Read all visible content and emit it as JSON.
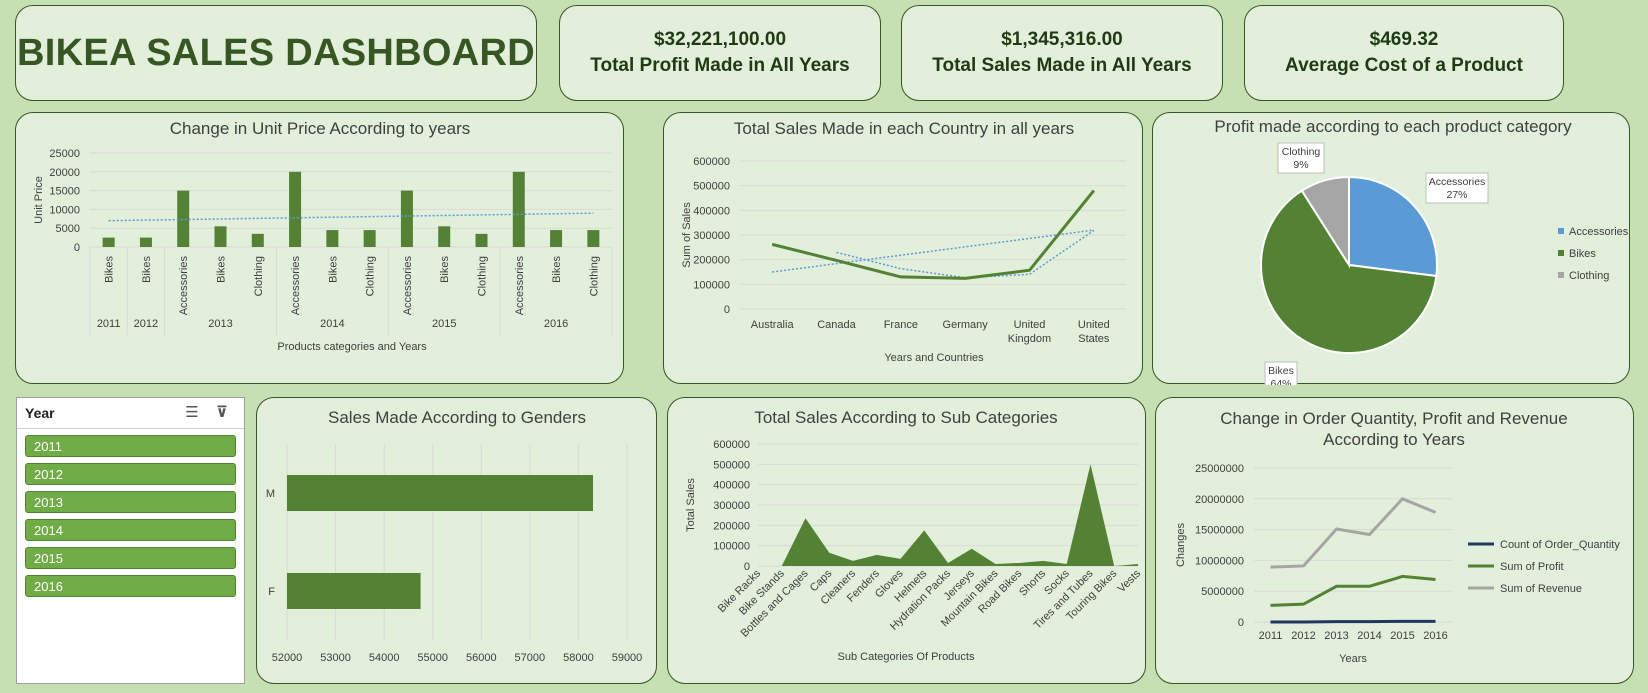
{
  "dashboard_title": "BIKEA SALES DASHBOARD",
  "kpis": [
    {
      "value": "$32,221,100.00",
      "label": "Total Profit Made in All Years"
    },
    {
      "value": "$1,345,316.00",
      "label": "Total Sales Made in All Years"
    },
    {
      "value": "$469.32",
      "label": "Average Cost of a Product"
    }
  ],
  "slicer": {
    "title": "Year",
    "items": [
      "2011",
      "2012",
      "2013",
      "2014",
      "2015",
      "2016"
    ]
  },
  "colors": {
    "dark_green": "#548235",
    "mid_green": "#70ad47",
    "blue": "#5b9bd5",
    "grey": "#a5a5a5",
    "navy": "#1f3864",
    "trend": "#5b9bd5"
  },
  "chart_data": [
    {
      "id": "unit_price",
      "type": "bar",
      "title": "Change in Unit Price According to years",
      "xlabel": "Products categories and Years",
      "ylabel": "Unit Price",
      "ylim": [
        0,
        25000
      ],
      "yticks": [
        "0",
        "5000",
        "10000",
        "15000",
        "20000",
        "25000"
      ],
      "categories": [
        "Bikes",
        "Bikes",
        "Accessories",
        "Bikes",
        "Clothing",
        "Accessories",
        "Bikes",
        "Clothing",
        "Accessories",
        "Bikes",
        "Clothing",
        "Accessories",
        "Bikes",
        "Clothing"
      ],
      "groups": [
        {
          "label": "2011",
          "count": 1
        },
        {
          "label": "2012",
          "count": 1
        },
        {
          "label": "2013",
          "count": 3
        },
        {
          "label": "2014",
          "count": 3
        },
        {
          "label": "2015",
          "count": 3
        },
        {
          "label": "2016",
          "count": 3
        }
      ],
      "values": [
        2500,
        2500,
        15000,
        5500,
        3500,
        20000,
        4500,
        4500,
        15000,
        5500,
        3500,
        20000,
        4500,
        4500
      ],
      "trendline": [
        7000,
        9000
      ],
      "grid": true
    },
    {
      "id": "country_sales",
      "type": "line",
      "title": "Total Sales Made in each Country in all years",
      "xlabel": "Years and Countries",
      "ylabel": "Sum of Sales",
      "ylim": [
        0,
        600000
      ],
      "yticks": [
        "0",
        "100000",
        "200000",
        "300000",
        "400000",
        "500000",
        "600000"
      ],
      "categories": [
        [
          "Australia"
        ],
        [
          "Canada"
        ],
        [
          "France"
        ],
        [
          "Germany"
        ],
        [
          "United",
          "Kingdom"
        ],
        [
          "United",
          "States"
        ]
      ],
      "values": [
        262000,
        197000,
        130000,
        124000,
        157000,
        480000
      ],
      "trend_linear": [
        150000,
        320000
      ],
      "trend_moving": [
        null,
        229500,
        163500,
        127000,
        140500,
        318500
      ],
      "grid": true
    },
    {
      "id": "profit_category",
      "type": "pie",
      "title": "Profit made according to each product category",
      "labels": [
        "Accessories",
        "Bikes",
        "Clothing"
      ],
      "values": [
        27,
        64,
        9
      ],
      "display": [
        "27%",
        "64%",
        "9%"
      ],
      "colors": [
        "#5b9bd5",
        "#548235",
        "#a5a5a5"
      ],
      "legend": "right"
    },
    {
      "id": "gender_sales",
      "type": "bar",
      "orientation": "horizontal",
      "title": "Sales Made According to Genders",
      "categories": [
        "M",
        "F"
      ],
      "values": [
        58300,
        54750
      ],
      "xlim": [
        52000,
        59000
      ],
      "xticks": [
        "52000",
        "53000",
        "54000",
        "55000",
        "56000",
        "57000",
        "58000",
        "59000"
      ],
      "grid": true
    },
    {
      "id": "subcat_sales",
      "type": "area",
      "title": "Total Sales According to Sub Categories",
      "xlabel": "Sub Categories Of Products",
      "ylabel": "Total Sales",
      "ylim": [
        0,
        600000
      ],
      "yticks": [
        "0",
        "100000",
        "200000",
        "300000",
        "400000",
        "500000",
        "600000"
      ],
      "categories": [
        "Bike Racks",
        "Bike Stands",
        "Bottles and Cages",
        "Caps",
        "Cleaners",
        "Fenders",
        "Gloves",
        "Helmets",
        "Hydration Packs",
        "Jerseys",
        "Mountain Bikes",
        "Road Bikes",
        "Shorts",
        "Socks",
        "Tires and Tubes",
        "Touring Bikes",
        "Vests"
      ],
      "values": [
        0,
        0,
        235000,
        65000,
        25000,
        55000,
        35000,
        175000,
        15000,
        85000,
        10000,
        15000,
        25000,
        10000,
        500000,
        0,
        10000
      ],
      "grid": true
    },
    {
      "id": "order_profit_revenue",
      "type": "line",
      "title": [
        "Change in Order Quantity, Profit and Revenue",
        "According to Years"
      ],
      "xlabel": "Years",
      "ylabel": "Changes",
      "ylim": [
        0,
        25000000
      ],
      "yticks": [
        "0",
        "5000000",
        "10000000",
        "15000000",
        "20000000",
        "25000000"
      ],
      "categories": [
        "2011",
        "2012",
        "2013",
        "2014",
        "2015",
        "2016"
      ],
      "series": [
        {
          "name": "Count of Order_Quantity",
          "values": [
            0,
            0,
            60000,
            60000,
            100000,
            100000
          ],
          "color": "#1f3864"
        },
        {
          "name": "Sum of Profit",
          "values": [
            2700000,
            2900000,
            5800000,
            5800000,
            7400000,
            6900000
          ],
          "color": "#548235"
        },
        {
          "name": "Sum of Revenue",
          "values": [
            8900000,
            9100000,
            15100000,
            14200000,
            20000000,
            17800000
          ],
          "color": "#a5a5a5"
        }
      ],
      "legend": "right",
      "grid": true
    }
  ]
}
